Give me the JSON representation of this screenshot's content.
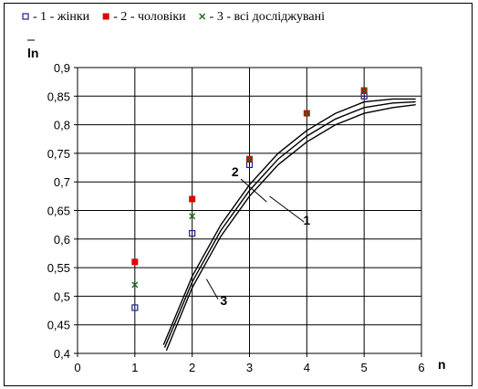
{
  "chart_data": {
    "type": "scatter",
    "xlabel": "n",
    "ylabel": "ln",
    "xlim": [
      0,
      6
    ],
    "ylim": [
      0.4,
      0.9
    ],
    "x_ticks": [
      "0",
      "1",
      "2",
      "3",
      "4",
      "5",
      "6"
    ],
    "y_ticks": [
      "0,4",
      "0,45",
      "0,5",
      "0,55",
      "0,6",
      "0,65",
      "0,7",
      "0,75",
      "0,8",
      "0,85",
      "0,9"
    ],
    "grid": true,
    "legend_position": "top",
    "series": [
      {
        "name": "- 1 - жінки",
        "marker": "open-square",
        "color": "#1f1f8f",
        "x": [
          1,
          2,
          3,
          5
        ],
        "y": [
          0.48,
          0.61,
          0.73,
          0.85
        ]
      },
      {
        "name": "- 2 - чоловіки",
        "marker": "filled-square",
        "color": "#e00000",
        "x": [
          1,
          2,
          3,
          4,
          5
        ],
        "y": [
          0.56,
          0.67,
          0.74,
          0.82,
          0.86
        ]
      },
      {
        "name": "- 3 - всі досліджувані",
        "marker": "x",
        "color": "#1a6b1a",
        "x": [
          1,
          2,
          3,
          4,
          5
        ],
        "y": [
          0.52,
          0.64,
          0.74,
          0.82,
          0.86
        ]
      }
    ],
    "fit_curves": [
      {
        "label": "1",
        "x": [
          1.55,
          2,
          2.5,
          3,
          3.5,
          4,
          4.5,
          5,
          5.5,
          5.9
        ],
        "y": [
          0.405,
          0.515,
          0.605,
          0.675,
          0.73,
          0.77,
          0.8,
          0.82,
          0.83,
          0.835
        ]
      },
      {
        "label": "2",
        "x": [
          1.5,
          2,
          2.5,
          3,
          3.5,
          4,
          4.5,
          5,
          5.5,
          5.9
        ],
        "y": [
          0.415,
          0.535,
          0.625,
          0.695,
          0.75,
          0.79,
          0.82,
          0.84,
          0.845,
          0.845
        ]
      },
      {
        "label": "3",
        "x": [
          1.52,
          2,
          2.5,
          3,
          3.5,
          4,
          4.5,
          5,
          5.5,
          5.9
        ],
        "y": [
          0.41,
          0.525,
          0.615,
          0.685,
          0.74,
          0.78,
          0.81,
          0.83,
          0.838,
          0.84
        ]
      }
    ],
    "curve_labels": [
      {
        "text": "2",
        "x": 2.75,
        "y": 0.71
      },
      {
        "text": "1",
        "x": 4.0,
        "y": 0.625
      },
      {
        "text": "3",
        "x": 2.55,
        "y": 0.485
      }
    ]
  }
}
